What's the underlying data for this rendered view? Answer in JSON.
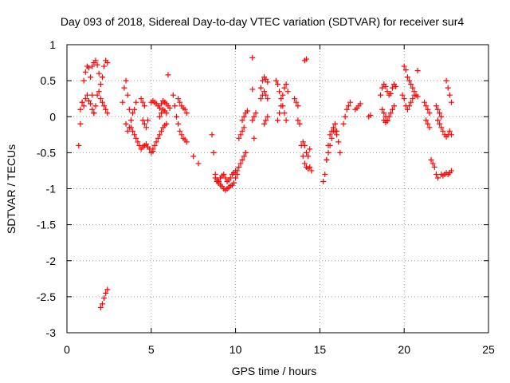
{
  "chart_data": {
    "type": "scatter",
    "title": "Day 093 of 2018, Sidereal Day-to-day VTEC variation (SDTVAR) for receiver sur4",
    "xlabel": "GPS time / hours",
    "ylabel": "SDTVAR / TECUs",
    "xlim": [
      0,
      25
    ],
    "ylim": [
      -3,
      1
    ],
    "xticks": [
      0,
      5,
      10,
      15,
      20,
      25
    ],
    "yticks": [
      1,
      0.5,
      0,
      -0.5,
      -1,
      -1.5,
      -2,
      -2.5,
      -3
    ],
    "xtick_labels": [
      "0",
      "5",
      "10",
      "15",
      "20",
      "25"
    ],
    "ytick_labels": [
      "1",
      "0.5",
      "0",
      "-0.5",
      "-1",
      "-1.5",
      "-2",
      "-2.5",
      "-3"
    ],
    "grid": true,
    "marker": "plus",
    "color": "#ff0000",
    "series": [
      {
        "name": "SDTVAR",
        "segments": [
          {
            "x": [
              0.7,
              0.8,
              0.9,
              1.0,
              1.1,
              1.2,
              1.3,
              1.4,
              1.5
            ],
            "y": [
              -0.4,
              -0.1,
              0.2,
              0.5,
              0.62,
              0.7,
              0.68,
              0.55,
              0.3
            ]
          },
          {
            "x": [
              0.8,
              0.9,
              1.0,
              1.1,
              1.2,
              1.3,
              1.4,
              1.5,
              1.6
            ],
            "y": [
              0.1,
              0.2,
              0.15,
              0.25,
              0.3,
              0.22,
              0.18,
              0.1,
              0.05
            ]
          },
          {
            "x": [
              1.5,
              1.6,
              1.7,
              1.8,
              1.9,
              2.0,
              2.1,
              2.2,
              2.3,
              2.4
            ],
            "y": [
              0.7,
              0.75,
              0.78,
              0.72,
              0.6,
              0.45,
              0.55,
              0.7,
              0.78,
              0.75
            ]
          },
          {
            "x": [
              1.6,
              1.7,
              1.8,
              1.9,
              2.0,
              2.1,
              2.2,
              2.3,
              2.4
            ],
            "y": [
              0.05,
              0.15,
              0.3,
              0.35,
              0.25,
              0.2,
              0.15,
              0.1,
              0.05
            ]
          },
          {
            "x": [
              2.0,
              2.1,
              2.2,
              2.3,
              2.4
            ],
            "y": [
              -2.65,
              -2.6,
              -2.52,
              -2.45,
              -2.4
            ]
          },
          {
            "x": [
              3.3,
              3.4,
              3.5,
              3.6,
              3.7,
              3.8,
              3.9,
              4.0
            ],
            "y": [
              0.2,
              0.4,
              0.5,
              0.3,
              0.1,
              -0.15,
              -0.2,
              -0.25
            ]
          },
          {
            "x": [
              3.5,
              3.6,
              3.7,
              3.8,
              3.9,
              4.0,
              4.1
            ],
            "y": [
              -0.1,
              -0.2,
              -0.15,
              -0.05,
              0.05,
              0.1,
              0.2
            ]
          },
          {
            "x": [
              4.1,
              4.2,
              4.3,
              4.4,
              4.5,
              4.6,
              4.7,
              4.8,
              4.9,
              5.0,
              5.1
            ],
            "y": [
              -0.3,
              -0.35,
              -0.4,
              -0.45,
              -0.42,
              -0.4,
              -0.38,
              -0.42,
              -0.45,
              -0.5,
              -0.48
            ]
          },
          {
            "x": [
              4.4,
              4.5,
              4.6
            ],
            "y": [
              0.25,
              0.2,
              0.15
            ]
          },
          {
            "x": [
              4.5,
              4.6,
              4.7,
              4.8
            ],
            "y": [
              -0.05,
              -0.1,
              -0.15,
              -0.05
            ]
          },
          {
            "x": [
              5.1,
              5.2,
              5.3,
              5.4,
              5.5,
              5.6,
              5.7,
              5.8,
              5.9
            ],
            "y": [
              -0.45,
              -0.4,
              -0.35,
              -0.3,
              -0.25,
              -0.2,
              -0.15,
              -0.12,
              -0.1
            ]
          },
          {
            "x": [
              5.0,
              5.1,
              5.2,
              5.3,
              5.4,
              5.5,
              5.6,
              5.7,
              5.8,
              5.9,
              6.0,
              6.1
            ],
            "y": [
              0.2,
              0.22,
              0.2,
              0.18,
              0.15,
              0.12,
              0.18,
              0.22,
              0.2,
              0.18,
              0.15,
              0.12
            ]
          },
          {
            "x": [
              5.5,
              5.6,
              5.7,
              5.8,
              5.9
            ],
            "y": [
              0.0,
              0.05,
              0.1,
              0.08,
              0.05
            ]
          },
          {
            "x": [
              6.0
            ],
            "y": [
              0.58
            ]
          },
          {
            "x": [
              6.3,
              6.4,
              6.5,
              6.6,
              6.7,
              6.8,
              6.9,
              7.0,
              7.1
            ],
            "y": [
              0.3,
              0.15,
              0.0,
              -0.1,
              -0.2,
              -0.25,
              -0.3,
              -0.32,
              -0.35
            ]
          },
          {
            "x": [
              6.6,
              6.7,
              6.8,
              6.9,
              7.0,
              7.1
            ],
            "y": [
              0.25,
              0.2,
              0.15,
              0.12,
              0.1,
              0.05
            ]
          },
          {
            "x": [
              7.5
            ],
            "y": [
              -0.55
            ]
          },
          {
            "x": [
              7.8
            ],
            "y": [
              -0.65
            ]
          },
          {
            "x": [
              8.6,
              8.7,
              8.8,
              8.9,
              9.0,
              9.1,
              9.2,
              9.3,
              9.4,
              9.5,
              9.6,
              9.7,
              9.8,
              9.9,
              10.0,
              10.1
            ],
            "y": [
              -0.25,
              -0.5,
              -0.8,
              -0.9,
              -0.92,
              -0.95,
              -0.97,
              -1.0,
              -1.02,
              -1.0,
              -0.98,
              -0.96,
              -0.95,
              -0.92,
              -0.85,
              -0.8
            ]
          },
          {
            "x": [
              8.8,
              8.9,
              9.0,
              9.1,
              9.2,
              9.3,
              9.4,
              9.5,
              9.6,
              9.7,
              9.8,
              9.9,
              10.0
            ],
            "y": [
              -0.85,
              -0.88,
              -0.9,
              -0.85,
              -0.82,
              -0.8,
              -0.85,
              -0.9,
              -0.88,
              -0.85,
              -0.8,
              -0.78,
              -0.75
            ]
          },
          {
            "x": [
              10.1,
              10.2,
              10.3,
              10.4,
              10.5,
              10.6
            ],
            "y": [
              -0.75,
              -0.7,
              -0.65,
              -0.6,
              -0.55,
              -0.5
            ]
          },
          {
            "x": [
              10.2,
              10.3,
              10.4,
              10.5
            ],
            "y": [
              -0.3,
              -0.25,
              -0.2,
              -0.15
            ]
          },
          {
            "x": [
              10.4,
              10.5,
              10.6,
              10.7
            ],
            "y": [
              -0.05,
              0.0,
              0.05,
              0.08
            ]
          },
          {
            "x": [
              11.0
            ],
            "y": [
              0.82
            ]
          },
          {
            "x": [
              11.0
            ],
            "y": [
              0.38
            ]
          },
          {
            "x": [
              11.0,
              11.1,
              11.2
            ],
            "y": [
              -0.05,
              0.0,
              0.05
            ]
          },
          {
            "x": [
              11.1
            ],
            "y": [
              -0.3
            ]
          },
          {
            "x": [
              11.5,
              11.6,
              11.7,
              11.8,
              11.9
            ],
            "y": [
              0.4,
              0.5,
              0.55,
              0.52,
              0.48
            ]
          },
          {
            "x": [
              11.5,
              11.6,
              11.7,
              11.8,
              11.9
            ],
            "y": [
              0.25,
              0.3,
              0.35,
              0.3,
              0.25
            ]
          },
          {
            "x": [
              11.7,
              11.8,
              11.9
            ],
            "y": [
              -0.1,
              -0.05,
              0.0
            ]
          },
          {
            "x": [
              12.4,
              12.5,
              12.6,
              12.7,
              12.8,
              12.9,
              13.0
            ],
            "y": [
              0.5,
              0.45,
              0.35,
              0.25,
              0.15,
              0.05,
              -0.05
            ]
          },
          {
            "x": [
              12.5,
              12.6,
              12.7,
              12.8,
              12.9,
              13.0,
              13.1
            ],
            "y": [
              -0.05,
              0.05,
              0.15,
              0.3,
              0.4,
              0.45,
              0.35
            ]
          },
          {
            "x": [
              13.5,
              13.6,
              13.7
            ],
            "y": [
              0.25,
              0.2,
              0.15
            ]
          },
          {
            "x": [
              13.7,
              13.8
            ],
            "y": [
              -0.05,
              -0.1
            ]
          },
          {
            "x": [
              14.1,
              14.2
            ],
            "y": [
              0.78,
              0.8
            ]
          },
          {
            "x": [
              13.9,
              14.0,
              14.1,
              14.2,
              14.3,
              14.4,
              14.5
            ],
            "y": [
              -0.4,
              -0.55,
              -0.65,
              -0.7,
              -0.72,
              -0.7,
              -0.75
            ]
          },
          {
            "x": [
              14.0,
              14.1,
              14.2,
              14.3,
              14.4
            ],
            "y": [
              -0.35,
              -0.4,
              -0.5,
              -0.55,
              -0.45
            ]
          },
          {
            "x": [
              15.2,
              15.3,
              15.4,
              15.5,
              15.6,
              15.7,
              15.8,
              15.9,
              16.0
            ],
            "y": [
              -0.9,
              -0.8,
              -0.6,
              -0.4,
              -0.25,
              -0.2,
              -0.15,
              -0.2,
              -0.25
            ]
          },
          {
            "x": [
              15.4,
              15.5,
              15.6,
              15.7,
              15.8,
              15.9,
              16.0,
              16.1,
              16.2
            ],
            "y": [
              -0.6,
              -0.5,
              -0.4,
              -0.3,
              -0.2,
              -0.1,
              -0.2,
              -0.35,
              -0.5
            ]
          },
          {
            "x": [
              16.4,
              16.5,
              16.6,
              16.7,
              16.8
            ],
            "y": [
              -0.1,
              0.0,
              0.1,
              0.15,
              0.2
            ]
          },
          {
            "x": [
              17.1,
              17.2,
              17.3,
              17.4
            ],
            "y": [
              0.1,
              0.12,
              0.15,
              0.18
            ]
          },
          {
            "x": [
              17.9,
              18.0
            ],
            "y": [
              0.0,
              0.02
            ]
          },
          {
            "x": [
              18.6,
              18.7,
              18.8,
              18.9,
              19.0,
              19.1,
              19.2,
              19.3,
              19.4,
              19.5
            ],
            "y": [
              0.3,
              0.4,
              0.45,
              0.42,
              0.35,
              0.3,
              0.32,
              0.4,
              0.45,
              0.42
            ]
          },
          {
            "x": [
              18.7,
              18.8,
              18.9,
              19.0,
              19.1,
              19.2,
              19.3,
              19.4
            ],
            "y": [
              0.1,
              0.05,
              0.0,
              -0.05,
              0.0,
              0.05,
              0.1,
              0.15
            ]
          },
          {
            "x": [
              18.8,
              18.9,
              19.0
            ],
            "y": [
              -0.05,
              -0.08,
              -0.06
            ]
          },
          {
            "x": [
              20.0,
              20.1,
              20.2,
              20.3,
              20.4,
              20.5,
              20.6,
              20.7,
              20.8
            ],
            "y": [
              0.7,
              0.65,
              0.55,
              0.5,
              0.45,
              0.4,
              0.35,
              0.3,
              0.28
            ]
          },
          {
            "x": [
              19.9,
              20.0,
              20.1,
              20.2,
              20.3,
              20.4,
              20.5,
              20.6
            ],
            "y": [
              0.3,
              0.25,
              0.15,
              0.1,
              0.15,
              0.2,
              0.25,
              0.3
            ]
          },
          {
            "x": [
              20.8
            ],
            "y": [
              0.64
            ]
          },
          {
            "x": [
              21.2,
              21.3,
              21.4,
              21.5
            ],
            "y": [
              0.2,
              0.15,
              0.1,
              0.05
            ]
          },
          {
            "x": [
              21.3,
              21.4,
              21.5
            ],
            "y": [
              -0.05,
              -0.1,
              -0.15
            ]
          },
          {
            "x": [
              21.6,
              21.7,
              21.8,
              21.9,
              22.0
            ],
            "y": [
              -0.6,
              -0.65,
              -0.7,
              -0.8,
              -0.85
            ]
          },
          {
            "x": [
              21.9,
              22.0,
              22.1,
              22.2
            ],
            "y": [
              0.15,
              0.1,
              0.05,
              0.0
            ]
          },
          {
            "x": [
              22.0,
              22.1,
              22.2,
              22.3,
              22.4,
              22.5,
              22.6,
              22.7,
              22.8
            ],
            "y": [
              -0.05,
              -0.1,
              -0.15,
              -0.2,
              -0.25,
              -0.28,
              -0.25,
              -0.2,
              -0.25
            ]
          },
          {
            "x": [
              22.5,
              22.6,
              22.7,
              22.8
            ],
            "y": [
              0.5,
              0.4,
              0.3,
              0.2
            ]
          },
          {
            "x": [
              22.2,
              22.3,
              22.4,
              22.5,
              22.6,
              22.7,
              22.8
            ],
            "y": [
              -0.8,
              -0.82,
              -0.8,
              -0.78,
              -0.8,
              -0.78,
              -0.75
            ]
          }
        ]
      }
    ]
  }
}
